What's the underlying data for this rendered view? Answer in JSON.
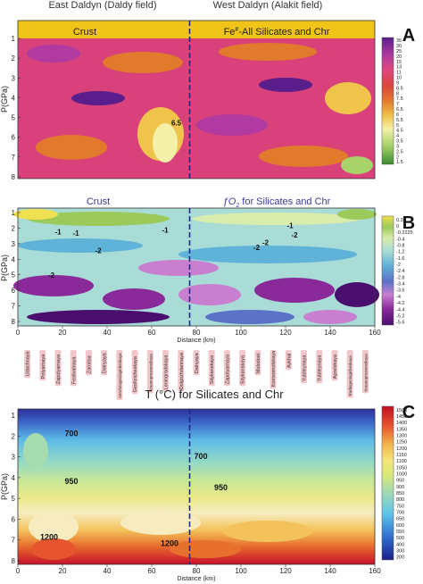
{
  "header": {
    "left": "East Daldyn (Daldy field)",
    "right": "West Daldyn (Alakit field)"
  },
  "colors": {
    "cold": "#1d2a8c",
    "hot": "#d20a28",
    "crust_bar": "#f0c419",
    "divider": "#1b2a8a"
  },
  "chart_data": [
    {
      "type": "heatmap",
      "panel_letter": "A",
      "title_left": "Crust",
      "title_right_prefix": "Fe",
      "title_right_sup": "#",
      "title_right_suffix": "-All Silicates and Chr",
      "ylabel": "P(GPa)",
      "xlabel": "",
      "ylim": [
        8,
        1
      ],
      "xlim": [
        0,
        160
      ],
      "yticks": [
        "1",
        "2",
        "3",
        "4",
        "5",
        "6",
        "7",
        "8"
      ],
      "divider_x": 77,
      "colorbar": [
        "35",
        "30",
        "25",
        "20",
        "15",
        "13",
        "11",
        "10",
        "9",
        "8.5",
        "8",
        "7.5",
        "7",
        "6.5",
        "6",
        "5.5",
        "5",
        "4.5",
        "4",
        "3.5",
        "3",
        "2.5",
        "2",
        "1.5"
      ],
      "contour_labels": [
        {
          "text": "6.5",
          "x": 71,
          "y": 5.4
        }
      ]
    },
    {
      "type": "heatmap",
      "panel_letter": "B",
      "title_left": "Crust",
      "title_right_prefix": "ƒO",
      "title_right_sub": "2",
      "title_right_suffix": " for Silicates and Chr",
      "ylabel": "P(GPa)",
      "xlabel": "Distance (km)",
      "ylim": [
        8,
        1
      ],
      "xlim": [
        0,
        160
      ],
      "yticks": [
        "1",
        "2",
        "3",
        "4",
        "5",
        "6",
        "7",
        "8"
      ],
      "xticks": [
        "0",
        "20",
        "40",
        "60",
        "80",
        "100",
        "120",
        "140",
        "160"
      ],
      "divider_x": 77,
      "colorbar": [
        "0.3",
        "0",
        "-0.2225",
        "-0.4",
        "-0.8",
        "-1.2",
        "-1.6",
        "-2",
        "-2.4",
        "-2.8",
        "-3.4",
        "-3.6",
        "-4",
        "-4.2",
        "-4.4",
        "-5.2",
        "-5.6"
      ],
      "contour_labels": [
        {
          "text": "-1",
          "x": 18,
          "y": 2.4
        },
        {
          "text": "-1",
          "x": 26,
          "y": 2.5
        },
        {
          "text": "-1",
          "x": 66,
          "y": 2.3
        },
        {
          "text": "-2",
          "x": 36,
          "y": 3.6
        },
        {
          "text": "-2",
          "x": 15,
          "y": 5.2
        },
        {
          "text": "-2",
          "x": 107,
          "y": 3.4
        },
        {
          "text": "-2",
          "x": 111,
          "y": 3.1
        },
        {
          "text": "-1",
          "x": 122,
          "y": 2.0
        },
        {
          "text": "-2",
          "x": 124,
          "y": 2.6
        }
      ],
      "site_labels": [
        "Udachnaya",
        "Polyarnaya",
        "Zapolyarnaya",
        "Festivalnaya",
        "Zarnitsa",
        "Dalnyaya",
        "Aerofotogeologicheskaya",
        "Geofizicheskaya",
        "Krasnopresnenskaya",
        "Leningradskaya",
        "Dolgozhdannaya",
        "Dalnyaya",
        "Sitykanskaya",
        "Zapolyarnaya",
        "Sitykanskaya",
        "Molodost",
        "Komsomolskaya",
        "Aykhal",
        "Yubileynaya",
        "Yubileynaya",
        "Aprelskaya",
        "Radiogeologicheskaya",
        "Krasnopresnenskaya"
      ]
    },
    {
      "type": "heatmap",
      "panel_letter": "C",
      "title": "T (°C) for Silicates and Chr",
      "ylabel": "P(GPa)",
      "xlabel": "Distance (km)",
      "ylim": [
        8,
        1
      ],
      "xlim": [
        0,
        160
      ],
      "yticks": [
        "1",
        "2",
        "3",
        "4",
        "5",
        "6",
        "7",
        "8"
      ],
      "xticks": [
        "0",
        "20",
        "40",
        "60",
        "80",
        "100",
        "120",
        "140",
        "160"
      ],
      "divider_x": 77,
      "colorbar": [
        "1500",
        "1450",
        "1400",
        "1350",
        "1300",
        "1250",
        "1200",
        "1150",
        "1100",
        "1050",
        "1000",
        "950",
        "900",
        "850",
        "800",
        "750",
        "700",
        "650",
        "600",
        "550",
        "500",
        "400",
        "300",
        "200"
      ],
      "contour_labels": [
        {
          "text": "700",
          "x": 24,
          "y": 2.0
        },
        {
          "text": "700",
          "x": 82,
          "y": 3.1
        },
        {
          "text": "950",
          "x": 24,
          "y": 4.3
        },
        {
          "text": "950",
          "x": 91,
          "y": 4.6
        },
        {
          "text": "1200",
          "x": 14,
          "y": 7.0
        },
        {
          "text": "1200",
          "x": 68,
          "y": 7.3
        }
      ]
    }
  ]
}
